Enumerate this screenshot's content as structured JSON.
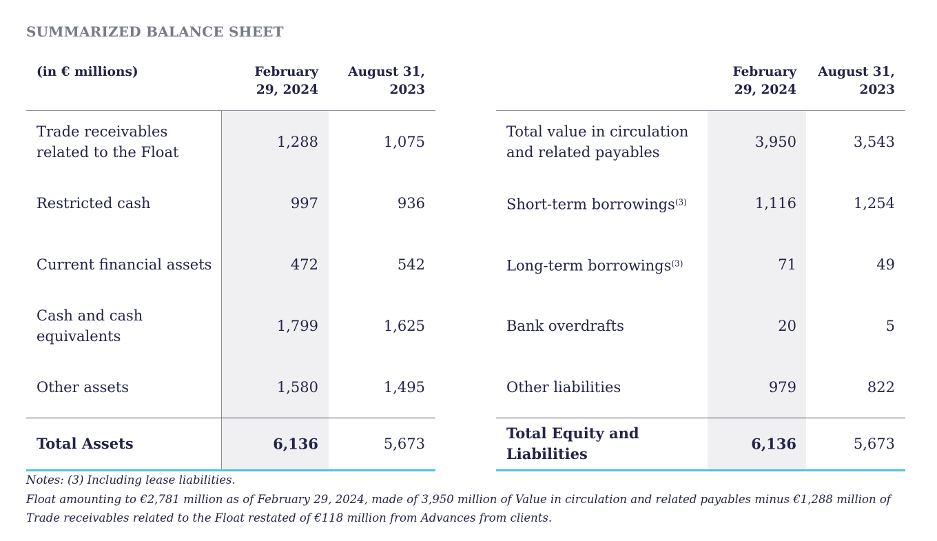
{
  "title": "SUMMARIZED BALANCE SHEET",
  "left": {
    "unit_label": "(in € millions)",
    "col1": "February 29, 2024",
    "col1_line1": "February",
    "col1_line2": "29, 2024",
    "col2_line1": "August 31,",
    "col2_line2": "2023",
    "rows": [
      {
        "label": "Trade receivables related to the Float",
        "feb": "1,288",
        "aug": "1,075"
      },
      {
        "label": "Restricted cash",
        "feb": "997",
        "aug": "936"
      },
      {
        "label": "Current financial assets",
        "feb": "472",
        "aug": "542"
      },
      {
        "label": "Cash and cash equivalents",
        "feb": "1,799",
        "aug": "1,625"
      },
      {
        "label": "Other assets",
        "feb": "1,580",
        "aug": "1,495"
      }
    ],
    "total": {
      "label": "Total Assets",
      "feb": "6,136",
      "aug": "5,673"
    }
  },
  "right": {
    "col1_line1": "February",
    "col1_line2": "29, 2024",
    "col2_line1": "August 31,",
    "col2_line2": "2023",
    "rows": [
      {
        "label": "Total value in circulation and related payables",
        "note": "",
        "feb": "3,950",
        "aug": "3,543"
      },
      {
        "label": "Short-term borrowings",
        "note": "(3)",
        "feb": "1,116",
        "aug": "1,254"
      },
      {
        "label": "Long-term borrowings",
        "note": "(3)",
        "feb": "71",
        "aug": "49"
      },
      {
        "label": "Bank overdrafts",
        "note": "",
        "feb": "20",
        "aug": "5"
      },
      {
        "label": "Other liabilities",
        "note": "",
        "feb": "979",
        "aug": "822"
      }
    ],
    "total": {
      "label": "Total Equity and Liabilities",
      "feb": "6,136",
      "aug": "5,673"
    }
  },
  "notes": {
    "line1": "Notes: (3) Including lease liabilities.",
    "line2": "Float amounting to €2,781 million as of February 29, 2024, made of 3,950 million of Value in circulation and related payables minus €1,288 million of Trade receivables related to the Float restated of €118 million from Advances from clients."
  },
  "colors": {
    "accent": "#4cc0ea",
    "text": "#23234a",
    "shade": "#f0f0f2"
  }
}
